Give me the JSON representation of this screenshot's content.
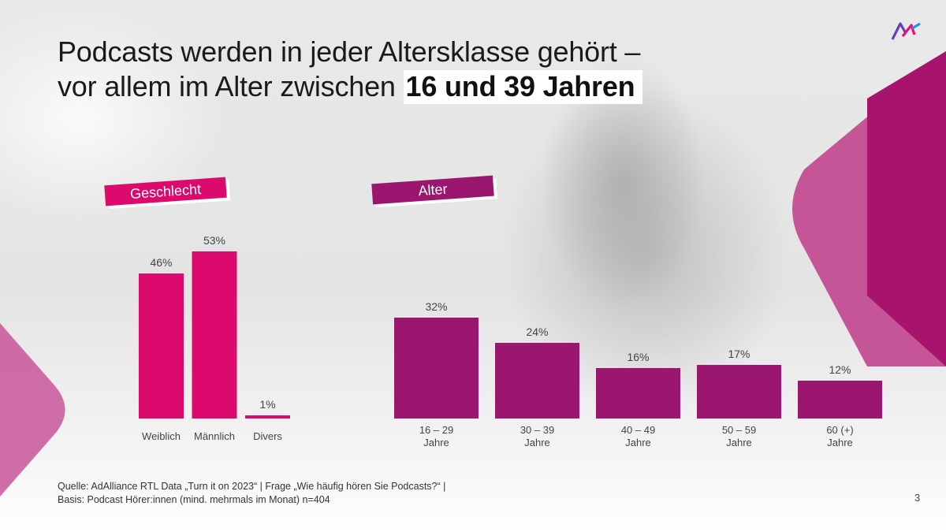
{
  "slide": {
    "title_line1": "Podcasts werden in jeder Altersklasse gehört –",
    "title_line2_prefix": "vor allem im Alter zwischen",
    "title_highlight": "16 und 39 Jahren",
    "page_number": "3"
  },
  "colors": {
    "gender_bar": "#dc0a6c",
    "age_bar": "#9b166e"
  },
  "source": {
    "line1": "Quelle: AdAlliance RTL Data „Turn it on 2023“ | Frage „Wie häufig hören Sie Podcasts?“ |",
    "line2": "Basis: Podcast Hörer:innen (mind. mehrmals im Monat) n=404"
  },
  "chart_data": [
    {
      "type": "bar",
      "title": "Geschlecht",
      "categories": [
        "Weiblich",
        "Männlich",
        "Divers"
      ],
      "values": [
        46,
        53,
        1
      ],
      "labels": [
        "46%",
        "53%",
        "1%"
      ],
      "unit": "%",
      "ylim": [
        0,
        53
      ]
    },
    {
      "type": "bar",
      "title": "Alter",
      "categories": [
        [
          "16 – 29",
          "Jahre"
        ],
        [
          "30 – 39",
          "Jahre"
        ],
        [
          "40 – 49",
          "Jahre"
        ],
        [
          "50 – 59",
          "Jahre"
        ],
        [
          "60 (+)",
          "Jahre"
        ]
      ],
      "values": [
        32,
        24,
        16,
        17,
        12
      ],
      "labels": [
        "32%",
        "24%",
        "16%",
        "17%",
        "12%"
      ],
      "unit": "%",
      "ylim": [
        0,
        53
      ]
    }
  ]
}
